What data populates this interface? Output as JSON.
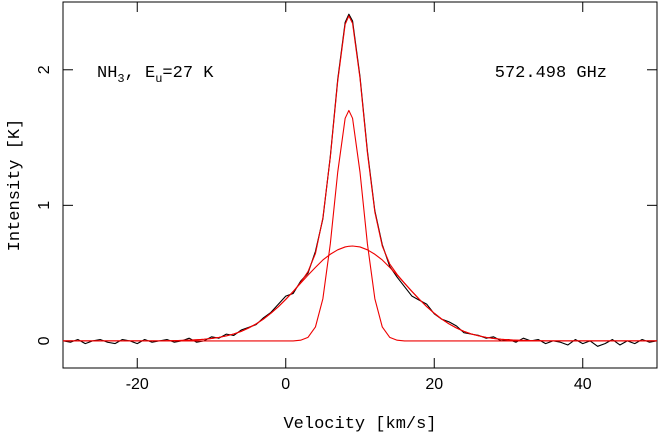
{
  "chart_data": {
    "type": "line",
    "xlabel": "Velocity  [km/s]",
    "ylabel": "Intensity [K]",
    "annotations": [
      {
        "parts": [
          "NH",
          "3",
          ", E",
          "u",
          "=27 K"
        ]
      },
      {
        "parts": [
          "572.498 GHz"
        ]
      }
    ],
    "xlim": [
      -30,
      50
    ],
    "ylim": [
      -0.2,
      2.5
    ],
    "xticks": [
      -20,
      0,
      20,
      40
    ],
    "yticks": [
      0,
      1,
      2
    ],
    "x": [
      -30,
      -29,
      -28,
      -27,
      -26,
      -25,
      -24,
      -23,
      -22,
      -21,
      -20,
      -19,
      -18,
      -17,
      -16,
      -15,
      -14,
      -13,
      -12,
      -11,
      -10,
      -9,
      -8,
      -7,
      -6,
      -5,
      -4,
      -3,
      -2,
      -1,
      0,
      1,
      2,
      3,
      4,
      5,
      6,
      7,
      8,
      8.5,
      9,
      10,
      11,
      12,
      13,
      14,
      15,
      16,
      17,
      18,
      19,
      20,
      21,
      22,
      23,
      24,
      25,
      26,
      27,
      28,
      29,
      30,
      31,
      32,
      33,
      34,
      35,
      36,
      37,
      38,
      39,
      40,
      41,
      42,
      43,
      44,
      45,
      46,
      47,
      48,
      49,
      50
    ],
    "series": [
      {
        "color": "#000000",
        "values": [
          0,
          -0.01,
          0.01,
          -0.02,
          0,
          0.01,
          -0.01,
          -0.02,
          0.01,
          0,
          -0.02,
          0.01,
          -0.01,
          0,
          0.01,
          -0.01,
          0,
          0.02,
          -0.01,
          0,
          0.03,
          0.02,
          0.05,
          0.04,
          0.08,
          0.1,
          0.12,
          0.17,
          0.21,
          0.27,
          0.33,
          0.35,
          0.44,
          0.5,
          0.66,
          0.9,
          1.36,
          1.93,
          2.35,
          2.41,
          2.36,
          1.95,
          1.4,
          0.96,
          0.71,
          0.55,
          0.47,
          0.4,
          0.33,
          0.3,
          0.27,
          0.2,
          0.16,
          0.14,
          0.11,
          0.06,
          0.05,
          0.04,
          0.02,
          0.03,
          0,
          0.01,
          -0.01,
          0.02,
          0,
          0.01,
          -0.02,
          0,
          -0.01,
          -0.03,
          0.01,
          -0.02,
          0,
          -0.04,
          -0.02,
          0.01,
          -0.03,
          0,
          -0.02,
          0.01,
          -0.01,
          0
        ]
      },
      {
        "color": "#ee0000",
        "values": [
          0,
          0,
          0,
          0,
          0,
          0,
          0,
          0,
          0,
          0,
          0,
          0,
          0,
          0,
          0.001,
          0.002,
          0.003,
          0.005,
          0.008,
          0.012,
          0.018,
          0.026,
          0.037,
          0.051,
          0.07,
          0.095,
          0.125,
          0.161,
          0.204,
          0.252,
          0.306,
          0.364,
          0.43,
          0.511,
          0.645,
          0.908,
          1.354,
          1.917,
          2.335,
          2.398,
          2.342,
          1.938,
          1.387,
          0.95,
          0.7,
          0.568,
          0.49,
          0.425,
          0.364,
          0.306,
          0.252,
          0.204,
          0.161,
          0.125,
          0.095,
          0.07,
          0.051,
          0.037,
          0.026,
          0.018,
          0.012,
          0.008,
          0.005,
          0.003,
          0.002,
          0.001,
          0,
          0,
          0,
          0,
          0,
          0,
          0,
          0,
          0,
          0,
          0,
          0,
          0,
          0,
          0,
          0
        ]
      },
      {
        "color": "#ee0000",
        "values": [
          0,
          0,
          0,
          0,
          0,
          0,
          0,
          0,
          0,
          0,
          0,
          0,
          0,
          0,
          0,
          0,
          0,
          0,
          0,
          0,
          0,
          0,
          0,
          0,
          0,
          0,
          0,
          0,
          0,
          0,
          0,
          0,
          0.005,
          0.026,
          0.103,
          0.311,
          0.715,
          1.245,
          1.642,
          1.7,
          1.642,
          1.245,
          0.715,
          0.311,
          0.103,
          0.026,
          0.005,
          0,
          0,
          0,
          0,
          0,
          0,
          0,
          0,
          0,
          0,
          0,
          0,
          0,
          0,
          0,
          0,
          0,
          0,
          0,
          0,
          0,
          0,
          0,
          0,
          0,
          0,
          0,
          0,
          0,
          0,
          0,
          0,
          0,
          0,
          0
        ]
      },
      {
        "color": "#ee0000",
        "values": [
          0,
          0,
          0,
          0,
          0,
          0,
          0,
          0,
          0,
          0,
          0,
          0,
          0,
          0,
          0.001,
          0.002,
          0.003,
          0.005,
          0.008,
          0.012,
          0.018,
          0.026,
          0.037,
          0.051,
          0.07,
          0.095,
          0.125,
          0.161,
          0.204,
          0.252,
          0.306,
          0.364,
          0.425,
          0.485,
          0.542,
          0.597,
          0.639,
          0.672,
          0.693,
          0.698,
          0.7,
          0.693,
          0.672,
          0.639,
          0.597,
          0.542,
          0.485,
          0.425,
          0.364,
          0.306,
          0.252,
          0.204,
          0.161,
          0.125,
          0.095,
          0.07,
          0.051,
          0.037,
          0.026,
          0.018,
          0.012,
          0.008,
          0.005,
          0.003,
          0.002,
          0.001,
          0,
          0,
          0,
          0,
          0,
          0,
          0,
          0,
          0,
          0,
          0,
          0,
          0,
          0,
          0,
          0
        ]
      }
    ]
  }
}
